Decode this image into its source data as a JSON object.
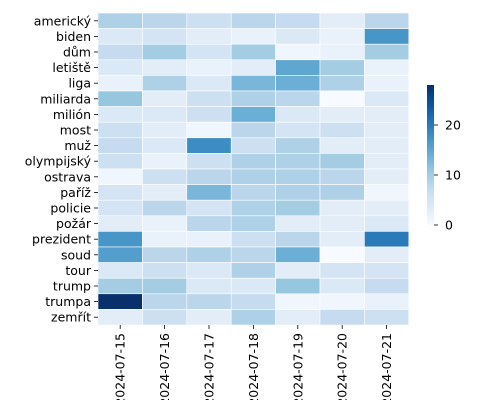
{
  "chart_data": {
    "type": "heatmap",
    "title": "",
    "xlabel": "",
    "ylabel": "",
    "x": [
      "2024-07-15",
      "2024-07-16",
      "2024-07-17",
      "2024-07-18",
      "2024-07-19",
      "2024-07-20",
      "2024-07-21"
    ],
    "y": [
      "americký",
      "biden",
      "dům",
      "letiště",
      "liga",
      "miliarda",
      "milión",
      "most",
      "muž",
      "olympijský",
      "ostrava",
      "paříž",
      "policie",
      "požár",
      "prezident",
      "soud",
      "tour",
      "trump",
      "trumpa",
      "zemřít"
    ],
    "values": [
      [
        9,
        8,
        6,
        8,
        7,
        3,
        8
      ],
      [
        4,
        5,
        3,
        2,
        4,
        2,
        17
      ],
      [
        7,
        10,
        5,
        10,
        1,
        2,
        10
      ],
      [
        4,
        3,
        2,
        3,
        15,
        10,
        2
      ],
      [
        2,
        9,
        4,
        13,
        14,
        9,
        2
      ],
      [
        11,
        3,
        6,
        9,
        8,
        0,
        4
      ],
      [
        4,
        4,
        6,
        14,
        4,
        3,
        3
      ],
      [
        6,
        3,
        1,
        8,
        5,
        6,
        3
      ],
      [
        7,
        4,
        18,
        6,
        9,
        3,
        3
      ],
      [
        6,
        2,
        6,
        9,
        9,
        10,
        3
      ],
      [
        1,
        6,
        8,
        9,
        9,
        8,
        3
      ],
      [
        5,
        3,
        13,
        8,
        9,
        9,
        1
      ],
      [
        5,
        8,
        5,
        9,
        10,
        3,
        3
      ],
      [
        3,
        2,
        8,
        9,
        3,
        3,
        4
      ],
      [
        17,
        2,
        2,
        6,
        8,
        3,
        20
      ],
      [
        16,
        8,
        9,
        8,
        14,
        0,
        3
      ],
      [
        4,
        6,
        4,
        9,
        3,
        5,
        5
      ],
      [
        10,
        10,
        4,
        4,
        11,
        4,
        7
      ],
      [
        28,
        8,
        8,
        7,
        1,
        1,
        2
      ],
      [
        3,
        6,
        3,
        9,
        3,
        7,
        6
      ]
    ],
    "colorbar": {
      "min": 0,
      "max": 28,
      "ticks": [
        0,
        10,
        20
      ]
    },
    "colormap": [
      "#f7fbff",
      "#deebf7",
      "#c6dbef",
      "#9ecae1",
      "#6baed6",
      "#4292c6",
      "#2171b5",
      "#08519c",
      "#08306b"
    ],
    "grid_line_color": "#ffffff"
  }
}
